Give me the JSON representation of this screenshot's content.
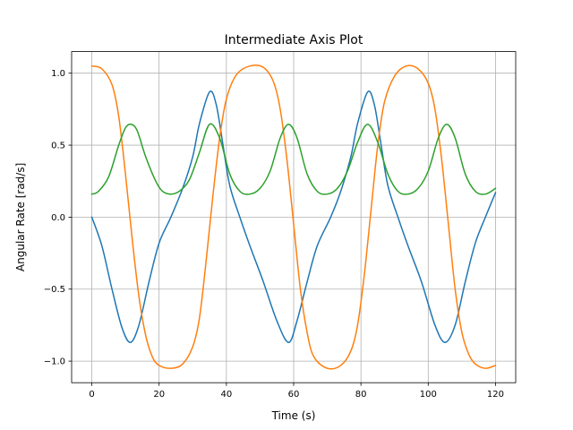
{
  "chart_data": {
    "type": "line",
    "title": "Intermediate Axis Plot",
    "xlabel": "Time (s)",
    "ylabel": "Angular Rate [rad/s]",
    "xlim": [
      -6,
      126
    ],
    "ylim": [
      -1.15,
      1.15
    ],
    "xticks": [
      0,
      20,
      40,
      60,
      80,
      100,
      120
    ],
    "xtick_labels": [
      "0",
      "20",
      "40",
      "60",
      "80",
      "100",
      "120"
    ],
    "yticks": [
      -1.0,
      -0.5,
      0.0,
      0.5,
      1.0
    ],
    "ytick_labels": [
      "−1.0",
      "−0.5",
      "0.0",
      "0.5",
      "1.0"
    ],
    "grid": true,
    "legend": "none",
    "series": [
      {
        "color": "#1f77b4",
        "x": [
          0,
          3,
          6,
          9,
          11.5,
          14,
          17,
          20,
          23.5,
          27,
          30,
          32,
          35,
          37,
          39,
          41,
          44,
          47,
          51,
          55,
          58.5,
          61,
          64,
          67,
          71,
          74,
          77,
          79,
          82,
          84,
          86,
          88,
          91,
          94,
          98,
          102,
          105,
          108,
          111,
          114,
          117,
          120
        ],
        "y": [
          0.0,
          -0.2,
          -0.5,
          -0.77,
          -0.87,
          -0.75,
          -0.45,
          -0.18,
          0.0,
          0.2,
          0.42,
          0.65,
          0.87,
          0.78,
          0.5,
          0.22,
          0.0,
          -0.2,
          -0.45,
          -0.72,
          -0.87,
          -0.72,
          -0.45,
          -0.2,
          0.0,
          0.18,
          0.42,
          0.65,
          0.87,
          0.78,
          0.5,
          0.22,
          0.0,
          -0.2,
          -0.45,
          -0.75,
          -0.87,
          -0.75,
          -0.45,
          -0.18,
          0.0,
          0.17
        ]
      },
      {
        "color": "#ff7f0e",
        "x": [
          0,
          3,
          6,
          8,
          10,
          12,
          14,
          16,
          18,
          20,
          23.5,
          27,
          30,
          32,
          34,
          36,
          38,
          40,
          43,
          47,
          51,
          54,
          56,
          58,
          60,
          62,
          64,
          66,
          70,
          74,
          77,
          79,
          81,
          83,
          85,
          87,
          90,
          93.5,
          97,
          100,
          102,
          104,
          106,
          108,
          110,
          112,
          114,
          117,
          120
        ],
        "y": [
          1.05,
          1.03,
          0.92,
          0.7,
          0.3,
          -0.15,
          -0.55,
          -0.82,
          -0.97,
          -1.03,
          -1.05,
          -1.02,
          -0.9,
          -0.7,
          -0.3,
          0.15,
          0.55,
          0.82,
          0.99,
          1.05,
          1.04,
          0.94,
          0.75,
          0.4,
          -0.05,
          -0.5,
          -0.8,
          -0.97,
          -1.05,
          -1.03,
          -0.93,
          -0.75,
          -0.4,
          0.05,
          0.5,
          0.8,
          0.98,
          1.05,
          1.03,
          0.93,
          0.75,
          0.4,
          -0.05,
          -0.5,
          -0.8,
          -0.95,
          -1.02,
          -1.05,
          -1.03
        ]
      },
      {
        "color": "#2ca02c",
        "x": [
          0,
          2,
          5,
          8,
          10,
          11.7,
          13.5,
          16,
          19,
          21,
          23.5,
          26,
          29,
          32,
          35,
          38,
          41,
          44,
          47,
          50,
          53,
          56,
          58.5,
          61,
          64,
          67,
          70,
          73,
          76,
          79,
          82,
          85,
          88,
          91,
          94,
          97,
          100,
          103,
          105.5,
          108,
          111,
          114,
          117,
          120
        ],
        "y": [
          0.16,
          0.18,
          0.28,
          0.5,
          0.62,
          0.645,
          0.6,
          0.42,
          0.25,
          0.18,
          0.16,
          0.18,
          0.26,
          0.45,
          0.645,
          0.55,
          0.3,
          0.18,
          0.16,
          0.2,
          0.32,
          0.55,
          0.645,
          0.55,
          0.3,
          0.18,
          0.16,
          0.2,
          0.32,
          0.52,
          0.645,
          0.52,
          0.3,
          0.18,
          0.16,
          0.2,
          0.32,
          0.55,
          0.645,
          0.55,
          0.3,
          0.18,
          0.16,
          0.2
        ]
      }
    ]
  }
}
